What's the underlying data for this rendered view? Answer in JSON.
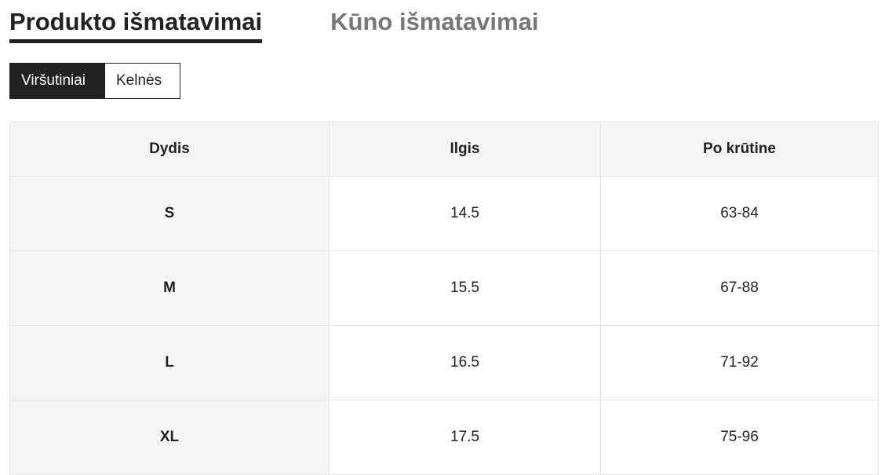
{
  "tabs": [
    {
      "label": "Produkto išmatavimai",
      "active": true
    },
    {
      "label": "Kūno išmatavimai",
      "active": false
    }
  ],
  "segments": [
    {
      "label": "Viršutiniai",
      "active": true
    },
    {
      "label": "Kelnės",
      "active": false
    }
  ],
  "table": {
    "headers": [
      "Dydis",
      "Ilgis",
      "Po krūtine"
    ],
    "rows": [
      [
        "S",
        "14.5",
        "63-84"
      ],
      [
        "M",
        "15.5",
        "67-88"
      ],
      [
        "L",
        "16.5",
        "71-92"
      ],
      [
        "XL",
        "17.5",
        "75-96"
      ]
    ]
  }
}
